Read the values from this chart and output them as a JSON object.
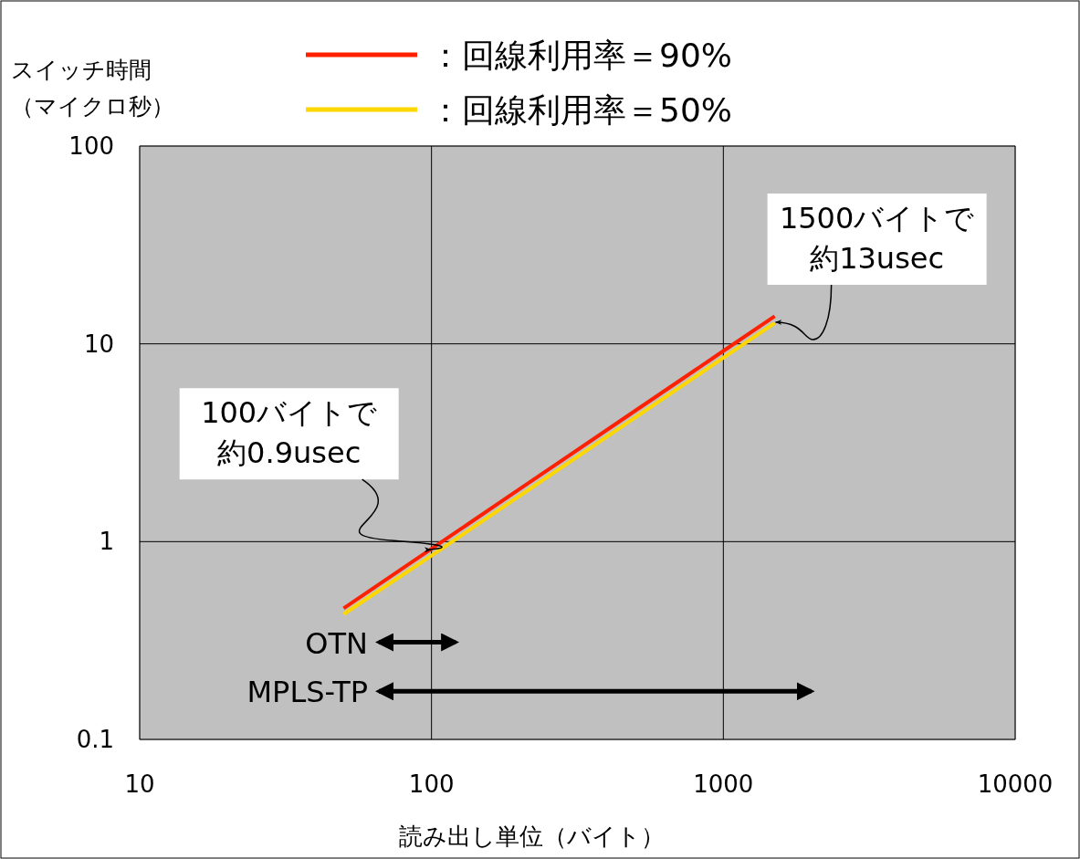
{
  "chart_data": {
    "type": "line",
    "log": "xy",
    "grid": true,
    "legend": "top",
    "xlabel": "読み出し単位（バイト）",
    "ylabel": "スイッチ時間（マイクロ秒）",
    "xlim": [
      10,
      10000
    ],
    "xticks": [
      10,
      100,
      1000,
      10000
    ],
    "ylim": [
      0.1,
      100
    ],
    "yticks": [
      0.1,
      1,
      10,
      100
    ],
    "series": [
      {
        "name": "：回線利用率＝90%",
        "color": "#ff2000",
        "x": [
          50,
          100,
          200,
          500,
          1000,
          1500
        ],
        "values": [
          0.46,
          0.92,
          1.84,
          4.6,
          9.2,
          13.8
        ]
      },
      {
        "name": "：回線利用率＝50%",
        "color": "#ffd700",
        "x": [
          50,
          100,
          200,
          500,
          1000,
          1500
        ],
        "values": [
          0.43,
          0.85,
          1.7,
          4.25,
          8.5,
          12.75
        ]
      },
      {
        "color": "#000000",
        "x": [
          66,
          121
        ],
        "values": [
          0.31,
          0.31
        ]
      },
      {
        "color": "#000000",
        "x": [
          66,
          2000
        ],
        "values": [
          0.175,
          0.175
        ]
      }
    ],
    "annotations": [
      {
        "text": "100バイトで約0.9usec",
        "x": 100,
        "y": 0.9
      },
      {
        "text": "1500バイトで約13usec",
        "x": 1500,
        "y": 13
      },
      {
        "text": "OTN",
        "x": 66,
        "y": 0.31
      },
      {
        "text": "MPLS-TP",
        "x": 66,
        "y": 0.175
      }
    ]
  }
}
